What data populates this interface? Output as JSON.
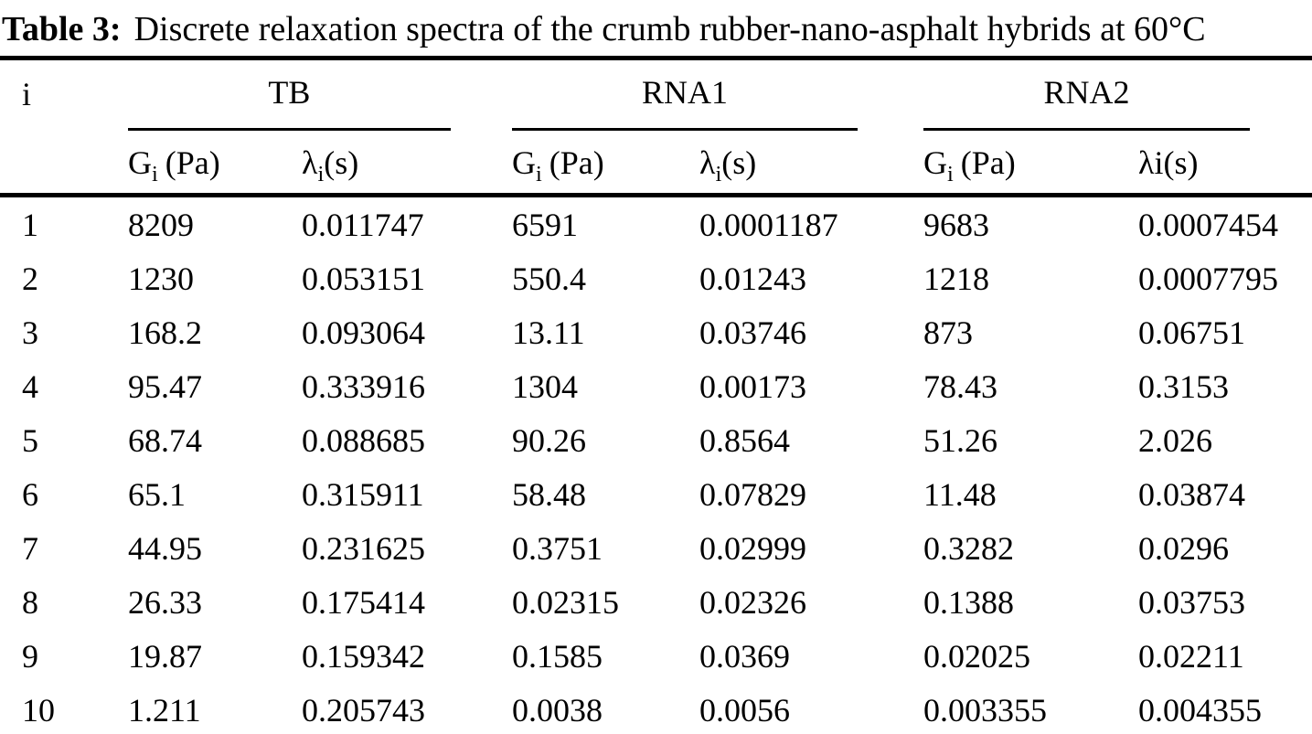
{
  "caption": {
    "label": "Table 3:",
    "text": "Discrete relaxation spectra of the crumb rubber-nano-asphalt hybrids at 60°C"
  },
  "table": {
    "headers": {
      "index": "i",
      "groups": {
        "tb": "TB",
        "rna1": "RNA1",
        "rna2": "RNA2"
      },
      "tb_g": {
        "base": "G",
        "sub": "i",
        "unit": "(Pa)"
      },
      "tb_l": {
        "base": "λ",
        "sub": "i",
        "unit": "(s)"
      },
      "rna1_g": {
        "base": "G",
        "sub": "i",
        "unit": "(Pa)"
      },
      "rna1_l": {
        "base": "λ",
        "sub": "i",
        "unit": "(s)"
      },
      "rna2_g": {
        "base": "G",
        "sub": "i",
        "unit": "(Pa)"
      },
      "rna2_l": "λi(s)"
    },
    "rows": [
      {
        "i": "1",
        "tb_g": "8209",
        "tb_l": "0.011747",
        "rna1_g": "6591",
        "rna1_l": "0.0001187",
        "rna2_g": "9683",
        "rna2_l": "0.0007454"
      },
      {
        "i": "2",
        "tb_g": "1230",
        "tb_l": "0.053151",
        "rna1_g": "550.4",
        "rna1_l": "0.01243",
        "rna2_g": "1218",
        "rna2_l": "0.0007795"
      },
      {
        "i": "3",
        "tb_g": "168.2",
        "tb_l": "0.093064",
        "rna1_g": "13.11",
        "rna1_l": "0.03746",
        "rna2_g": "873",
        "rna2_l": "0.06751"
      },
      {
        "i": "4",
        "tb_g": "95.47",
        "tb_l": "0.333916",
        "rna1_g": "1304",
        "rna1_l": "0.00173",
        "rna2_g": "78.43",
        "rna2_l": "0.3153"
      },
      {
        "i": "5",
        "tb_g": "68.74",
        "tb_l": "0.088685",
        "rna1_g": "90.26",
        "rna1_l": "0.8564",
        "rna2_g": "51.26",
        "rna2_l": "2.026"
      },
      {
        "i": "6",
        "tb_g": "65.1",
        "tb_l": "0.315911",
        "rna1_g": "58.48",
        "rna1_l": "0.07829",
        "rna2_g": "11.48",
        "rna2_l": "0.03874"
      },
      {
        "i": "7",
        "tb_g": "44.95",
        "tb_l": "0.231625",
        "rna1_g": "0.3751",
        "rna1_l": "0.02999",
        "rna2_g": "0.3282",
        "rna2_l": "0.0296"
      },
      {
        "i": "8",
        "tb_g": "26.33",
        "tb_l": "0.175414",
        "rna1_g": "0.02315",
        "rna1_l": "0.02326",
        "rna2_g": "0.1388",
        "rna2_l": "0.03753"
      },
      {
        "i": "9",
        "tb_g": "19.87",
        "tb_l": "0.159342",
        "rna1_g": "0.1585",
        "rna1_l": "0.0369",
        "rna2_g": "0.02025",
        "rna2_l": "0.02211"
      },
      {
        "i": "10",
        "tb_g": "1.211",
        "tb_l": "0.205743",
        "rna1_g": "0.0038",
        "rna1_l": "0.0056",
        "rna2_g": "0.003355",
        "rna2_l": "0.004355"
      }
    ]
  }
}
